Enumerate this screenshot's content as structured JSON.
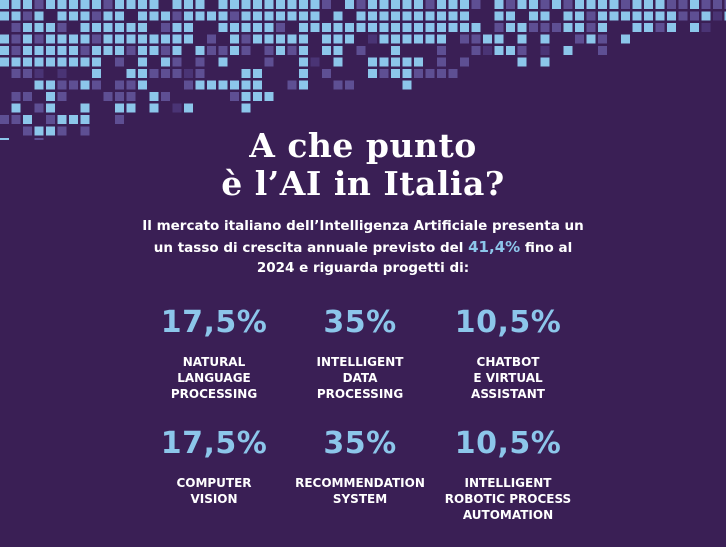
{
  "title": {
    "line1": "A che punto",
    "line2": "è  l’AI in Italia?"
  },
  "intro": {
    "line1": "Il mercato italiano dell’Intelligenza Artificiale presenta un",
    "line2_before": "un tasso di crescita annuale previsto del ",
    "growth": "41,4%",
    "line2_after": " fino al",
    "line3": "2024 e riguarda progetti di:"
  },
  "stats": [
    {
      "value": "17,5%",
      "label": "NATURAL\nLANGUAGE\nPROCESSING"
    },
    {
      "value": "35%",
      "label": "INTELLIGENT\nDATA\nPROCESSING"
    },
    {
      "value": "10,5%",
      "label": "CHATBOT\nE VIRTUAL\nASSISTANT"
    },
    {
      "value": "17,5%",
      "label": "COMPUTER\nVISION"
    },
    {
      "value": "35%",
      "label": "RECOMMENDATION\nSYSTEM"
    },
    {
      "value": "10,5%",
      "label": "INTELLIGENT\nROBOTIC PROCESS\nAUTOMATION"
    }
  ],
  "colors": {
    "background": "#3a1f55",
    "accent": "#8cc6ea",
    "text": "#ffffff"
  }
}
